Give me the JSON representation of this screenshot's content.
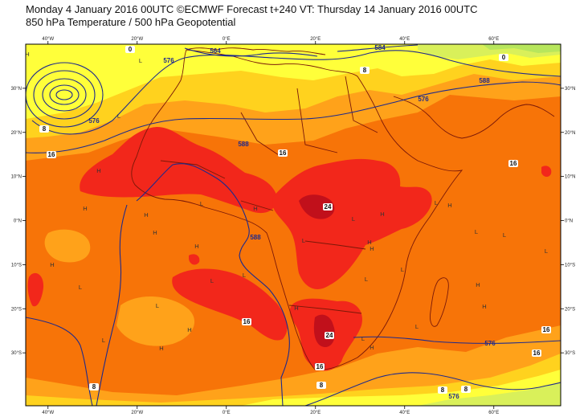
{
  "header": {
    "title_line1": "Monday 4 January 2016 00UTC ©ECMWF Forecast t+240 VT: Thursday 14 January 2016 00UTC",
    "title_line2": "850 hPa Temperature / 500 hPa Geopotential"
  },
  "map": {
    "projection": "lat-lon",
    "lon_range": [
      -45,
      75
    ],
    "lat_range": [
      -42,
      40
    ],
    "colors": {
      "lt0": "#b7e65c",
      "t0_4": "#d9f05a",
      "t4_8": "#ffff3a",
      "t8_12": "#ffd21e",
      "t12_16": "#ffa21a",
      "t16_20": "#f77408",
      "t20_24": "#f2271b",
      "gt24": "#c1101b",
      "geopotential": "#1e2a8c",
      "isotherm_label": "#111111",
      "coastline": "#7a1808"
    },
    "x_ticks_top": [
      "40°W",
      "20°W",
      "0°E",
      "20°E",
      "40°E",
      "60°E"
    ],
    "x_ticks_bottom": [
      "40°W",
      "20°W",
      "0°E",
      "20°E",
      "40°E",
      "60°E"
    ],
    "y_ticks_left": [
      "30°N",
      "20°N",
      "10°N",
      "0°N",
      "10°S",
      "20°S",
      "30°S"
    ],
    "y_ticks_right": [
      "30°N",
      "20°N",
      "10°N",
      "0°N",
      "10°S",
      "20°S",
      "30°S"
    ],
    "geopotential_labels": [
      "576",
      "564",
      "584",
      "576",
      "576",
      "588",
      "588",
      "576",
      "588",
      "588",
      "576"
    ],
    "isotherm_labels": [
      "0",
      "8",
      "16",
      "16",
      "16",
      "8",
      "24",
      "16",
      "24",
      "16",
      "16",
      "8",
      "0",
      "8",
      "8",
      "16",
      "8"
    ],
    "pressure_centres": [
      "H",
      "L",
      "L",
      "H",
      "H",
      "H",
      "H",
      "H",
      "H",
      "H",
      "H",
      "L",
      "L",
      "L",
      "H",
      "L",
      "L",
      "L",
      "H",
      "L",
      "H",
      "H",
      "H",
      "L",
      "L",
      "L",
      "L",
      "H",
      "L",
      "L",
      "L",
      "H",
      "H",
      "H",
      "L",
      "L"
    ],
    "shown_levels": {
      "temperature_degC": [
        0,
        4,
        8,
        12,
        16,
        20,
        24
      ],
      "geopotential_dam": [
        564,
        576,
        584,
        588
      ]
    }
  }
}
